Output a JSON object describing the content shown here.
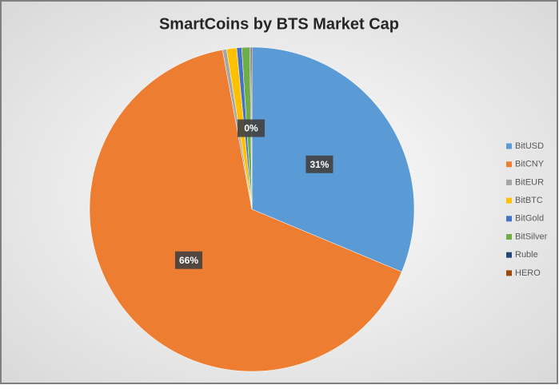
{
  "chart_data": {
    "type": "pie",
    "title": "SmartCoins by BTS Market Cap",
    "categories": [
      "BitUSD",
      "BitCNY",
      "BitEUR",
      "BitBTC",
      "BitGold",
      "BitSilver",
      "Ruble",
      "HERO"
    ],
    "values": [
      31.3,
      65.8,
      0.4,
      1.0,
      0.5,
      0.8,
      0.1,
      0.1
    ],
    "value_labels": [
      "31%",
      "66%",
      null,
      null,
      null,
      null,
      "0%",
      null
    ],
    "colors": [
      "#5B9BD5",
      "#ED7D31",
      "#A5A5A5",
      "#FFC000",
      "#4472C4",
      "#70AD47",
      "#264478",
      "#9E480E"
    ],
    "legend": "right"
  }
}
